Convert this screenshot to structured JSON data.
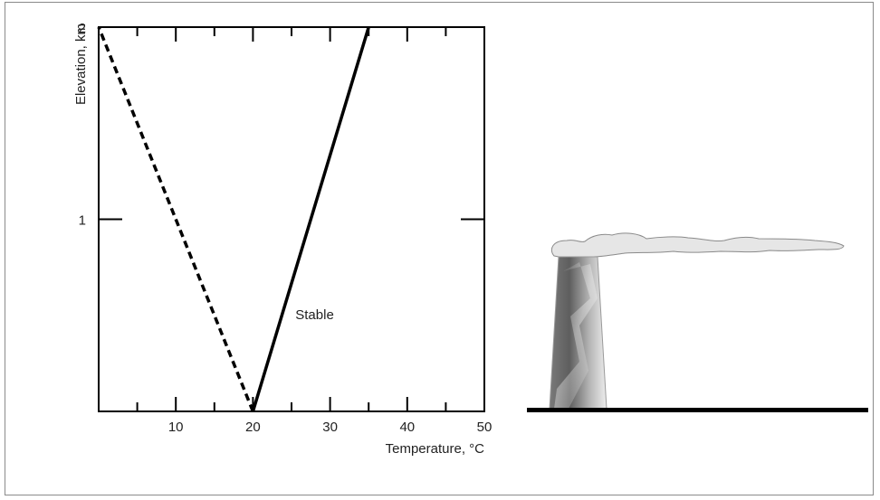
{
  "chart_data": {
    "type": "line",
    "xlabel": "Temperature, °C",
    "ylabel": "Elevation, km",
    "xlim": [
      0,
      50
    ],
    "ylim": [
      0,
      2
    ],
    "x_ticks_major": [
      10,
      20,
      30,
      40,
      50
    ],
    "x_ticks_minor": [
      5,
      15,
      25,
      35,
      45
    ],
    "y_ticks_labeled": [
      1,
      2
    ],
    "grid": false,
    "series": [
      {
        "style": "dashed",
        "points": [
          [
            20,
            0
          ],
          [
            0,
            2
          ]
        ]
      },
      {
        "name": "Stable",
        "style": "solid",
        "points": [
          [
            20,
            0
          ],
          [
            35,
            2
          ]
        ]
      }
    ],
    "annotations": [
      {
        "text": "Stable",
        "x": 25.5,
        "y": 0.5
      }
    ]
  },
  "illustration": {
    "stack_icon": "smokestack-icon",
    "plume_icon": "smoke-plume-icon",
    "colors": {
      "plume_fill": "#e6e6e6",
      "plume_stroke": "#8a8a8a",
      "ground": "#000000",
      "stack_dark": "#6e6e6e",
      "stack_light": "#e8e8e8"
    }
  }
}
